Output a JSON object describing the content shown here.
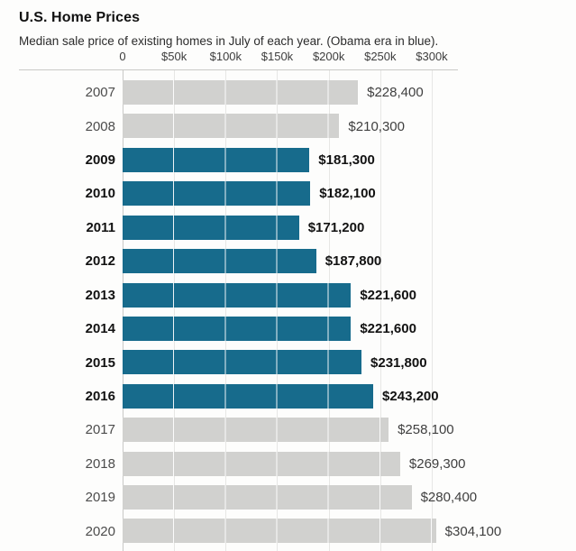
{
  "header": {
    "title": "U.S. Home Prices",
    "subtitle": "Median sale price of existing homes in July of each year. (Obama era in blue)."
  },
  "chart_data": {
    "type": "bar",
    "orientation": "horizontal",
    "title": "U.S. Home Prices",
    "subtitle": "Median sale price of existing homes in July of each year. (Obama era in blue).",
    "categories": [
      "2007",
      "2008",
      "2009",
      "2010",
      "2011",
      "2012",
      "2013",
      "2014",
      "2015",
      "2016",
      "2017",
      "2018",
      "2019",
      "2020"
    ],
    "values": [
      228400,
      210300,
      181300,
      182100,
      171200,
      187800,
      221600,
      221600,
      231800,
      243200,
      258100,
      269300,
      280400,
      304100
    ],
    "value_labels": [
      "$228,400",
      "$210,300",
      "$181,300",
      "$182,100",
      "$171,200",
      "$187,800",
      "$221,600",
      "$221,600",
      "$231,800",
      "$243,200",
      "$258,100",
      "$269,300",
      "$280,400",
      "$304,100"
    ],
    "highlighted": [
      false,
      false,
      true,
      true,
      true,
      true,
      true,
      true,
      true,
      true,
      false,
      false,
      false,
      false
    ],
    "highlight_meaning": "Obama era in blue",
    "x_ticks": [
      "0",
      "$50k",
      "$100k",
      "$150k",
      "$200k",
      "$250k",
      "$300k"
    ],
    "x_tick_values": [
      0,
      50000,
      100000,
      150000,
      200000,
      250000,
      300000
    ],
    "xlim": [
      0,
      300000
    ],
    "grid": true,
    "legend_position": "none",
    "colors": {
      "highlight_bar": "#176b8c",
      "normal_bar": "#d1d1cf",
      "gridline": "#e7e7e5",
      "axis": "#c9c9c7"
    }
  }
}
